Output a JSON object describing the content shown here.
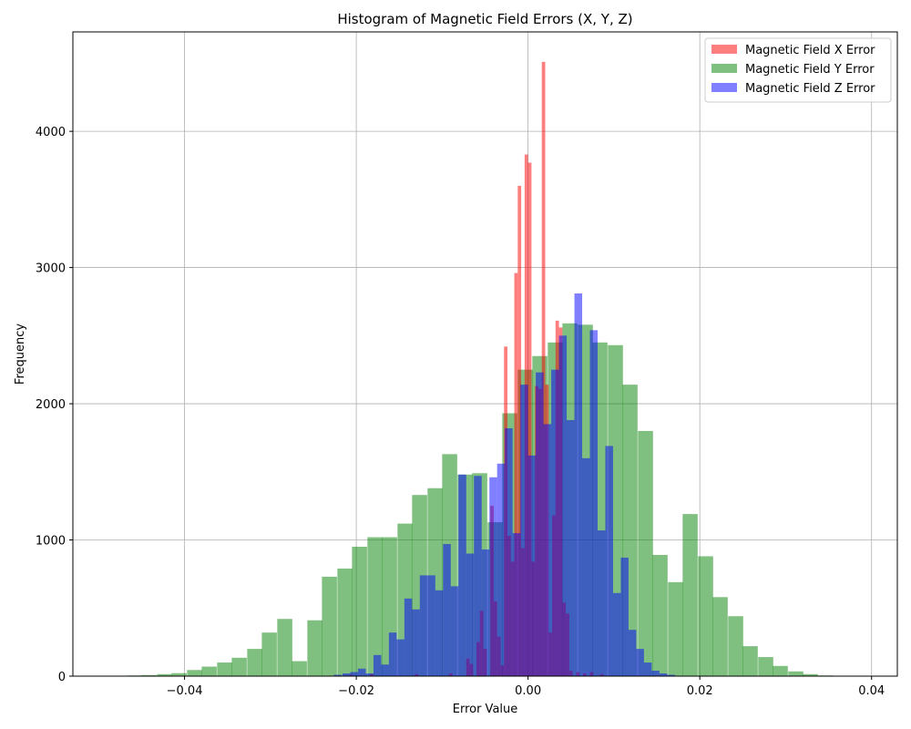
{
  "chart_data": {
    "type": "bar",
    "title": "Histogram of Magnetic Field Errors (X, Y, Z)",
    "xlabel": "Error Value",
    "ylabel": "Frequency",
    "xlim": [
      -0.053,
      0.043
    ],
    "ylim": [
      0,
      4730
    ],
    "xticks": [
      -0.04,
      -0.02,
      0.0,
      0.02,
      0.04
    ],
    "xtick_labels": [
      "−0.04",
      "−0.02",
      "0.00",
      "0.02",
      "0.04"
    ],
    "yticks": [
      0,
      1000,
      2000,
      3000,
      4000
    ],
    "ytick_labels": [
      "0",
      "1000",
      "2000",
      "3000",
      "4000"
    ],
    "grid": true,
    "legend_position": "top-right",
    "series": [
      {
        "name": "Magnetic Field Y Error",
        "color": "#008000",
        "opacity": 0.5,
        "bin_width": 0.00175,
        "bins": [
          [
            -0.0467,
            5
          ],
          [
            -0.045,
            8
          ],
          [
            -0.0432,
            15
          ],
          [
            -0.0415,
            22
          ],
          [
            -0.0397,
            45
          ],
          [
            -0.038,
            70
          ],
          [
            -0.0362,
            100
          ],
          [
            -0.0345,
            135
          ],
          [
            -0.0327,
            200
          ],
          [
            -0.031,
            320
          ],
          [
            -0.0292,
            420
          ],
          [
            -0.0275,
            110
          ],
          [
            -0.0257,
            410
          ],
          [
            -0.024,
            730
          ],
          [
            -0.0222,
            790
          ],
          [
            -0.0205,
            950
          ],
          [
            -0.0187,
            1020
          ],
          [
            -0.017,
            1020
          ],
          [
            -0.0152,
            1120
          ],
          [
            -0.0135,
            1330
          ],
          [
            -0.0117,
            1380
          ],
          [
            -0.01,
            1630
          ],
          [
            -0.0082,
            1480
          ],
          [
            -0.0065,
            1490
          ],
          [
            -0.0047,
            1130
          ],
          [
            -0.003,
            1930
          ],
          [
            -0.0012,
            2250
          ],
          [
            0.0005,
            2350
          ],
          [
            0.0023,
            2450
          ],
          [
            0.004,
            2590
          ],
          [
            0.0058,
            2580
          ],
          [
            0.0075,
            2450
          ],
          [
            0.0093,
            2430
          ],
          [
            0.011,
            2140
          ],
          [
            0.0128,
            1800
          ],
          [
            0.0145,
            890
          ],
          [
            0.0163,
            690
          ],
          [
            0.018,
            1190
          ],
          [
            0.0198,
            880
          ],
          [
            0.0215,
            580
          ],
          [
            0.0233,
            440
          ],
          [
            0.025,
            220
          ],
          [
            0.0268,
            140
          ],
          [
            0.0285,
            75
          ],
          [
            0.0303,
            35
          ],
          [
            0.032,
            15
          ],
          [
            0.0338,
            5
          ]
        ]
      },
      {
        "name": "Magnetic Field X Error",
        "color": "#ff0000",
        "opacity": 0.5,
        "bin_width": 0.0004,
        "bins": [
          [
            -0.0208,
            10
          ],
          [
            -0.0184,
            15
          ],
          [
            -0.0132,
            15
          ],
          [
            -0.0092,
            20
          ],
          [
            -0.0072,
            130
          ],
          [
            -0.0068,
            90
          ],
          [
            -0.006,
            250
          ],
          [
            -0.0056,
            480
          ],
          [
            -0.0052,
            200
          ],
          [
            -0.0044,
            1250
          ],
          [
            -0.004,
            550
          ],
          [
            -0.0036,
            290
          ],
          [
            -0.0032,
            80
          ],
          [
            -0.0028,
            2420
          ],
          [
            -0.0024,
            1030
          ],
          [
            -0.002,
            840
          ],
          [
            -0.0016,
            2960
          ],
          [
            -0.0012,
            3600
          ],
          [
            -0.0008,
            940
          ],
          [
            -0.0004,
            3830
          ],
          [
            0.0,
            3770
          ],
          [
            0.0004,
            840
          ],
          [
            0.0008,
            2130
          ],
          [
            0.0012,
            2110
          ],
          [
            0.0016,
            4510
          ],
          [
            0.002,
            2140
          ],
          [
            0.0024,
            320
          ],
          [
            0.0028,
            1180
          ],
          [
            0.0032,
            2610
          ],
          [
            0.0036,
            2560
          ],
          [
            0.004,
            540
          ],
          [
            0.0044,
            460
          ],
          [
            0.0048,
            40
          ],
          [
            0.0056,
            30
          ],
          [
            0.0064,
            20
          ],
          [
            0.0072,
            30
          ],
          [
            0.0084,
            15
          ]
        ]
      },
      {
        "name": "Magnetic Field Z Error",
        "color": "#0000ff",
        "opacity": 0.5,
        "bin_width": 0.0009,
        "bins": [
          [
            -0.0226,
            10
          ],
          [
            -0.0216,
            20
          ],
          [
            -0.0207,
            30
          ],
          [
            -0.0198,
            55
          ],
          [
            -0.0189,
            20
          ],
          [
            -0.018,
            155
          ],
          [
            -0.0171,
            85
          ],
          [
            -0.0162,
            320
          ],
          [
            -0.0153,
            270
          ],
          [
            -0.0144,
            570
          ],
          [
            -0.0135,
            490
          ],
          [
            -0.0126,
            740
          ],
          [
            -0.0117,
            740
          ],
          [
            -0.0108,
            630
          ],
          [
            -0.0099,
            970
          ],
          [
            -0.009,
            660
          ],
          [
            -0.0081,
            1480
          ],
          [
            -0.0072,
            900
          ],
          [
            -0.0063,
            1470
          ],
          [
            -0.0054,
            930
          ],
          [
            -0.0045,
            1460
          ],
          [
            -0.0036,
            1560
          ],
          [
            -0.0027,
            1820
          ],
          [
            -0.0018,
            1050
          ],
          [
            -0.0009,
            2140
          ],
          [
            0.0,
            1620
          ],
          [
            0.0009,
            2230
          ],
          [
            0.0018,
            1850
          ],
          [
            0.0027,
            2250
          ],
          [
            0.0036,
            2500
          ],
          [
            0.0045,
            1880
          ],
          [
            0.0054,
            2810
          ],
          [
            0.0063,
            1600
          ],
          [
            0.0072,
            2540
          ],
          [
            0.0081,
            1070
          ],
          [
            0.009,
            1690
          ],
          [
            0.0099,
            610
          ],
          [
            0.0108,
            870
          ],
          [
            0.0117,
            340
          ],
          [
            0.0126,
            200
          ],
          [
            0.0135,
            100
          ],
          [
            0.0144,
            40
          ],
          [
            0.0153,
            20
          ],
          [
            0.0162,
            10
          ]
        ]
      }
    ],
    "legend_order": [
      "Magnetic Field X Error",
      "Magnetic Field Y Error",
      "Magnetic Field Z Error"
    ]
  }
}
